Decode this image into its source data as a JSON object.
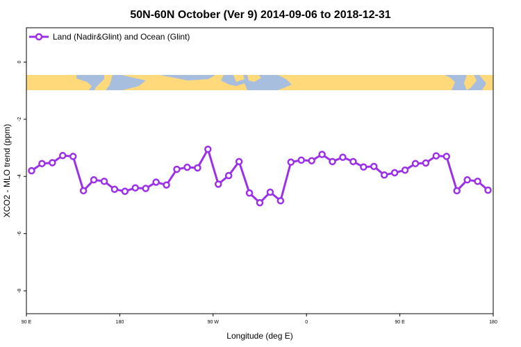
{
  "chart_data": {
    "type": "line",
    "title": "50N-60N October (Ver 9)   2014-09-06 to 2018-12-31",
    "xlabel": "Longitude (deg E)",
    "ylabel": "XCO2 - MLO trend (ppm)",
    "x_ticks": [
      "90 E",
      "180",
      "90 W",
      "0",
      "90 E",
      "180"
    ],
    "y_ticks": [
      "0",
      "-2",
      "-4",
      "-6",
      "-8"
    ],
    "ylim": [
      -8.8,
      1.2
    ],
    "xlim": [
      90,
      540
    ],
    "grid": false,
    "legend_position": "top-left",
    "series": [
      {
        "name": "Land (Nadir&Glint) and Ocean (Glint)",
        "color": "#9b30e8",
        "x": [
          95,
          105,
          115,
          125,
          135,
          145,
          155,
          165,
          175,
          185,
          195,
          205,
          215,
          225,
          235,
          245,
          255,
          265,
          275,
          285,
          295,
          305,
          315,
          325,
          335,
          345,
          355,
          365,
          375,
          385,
          395,
          405,
          415,
          425,
          435,
          445,
          455,
          465,
          475,
          485,
          495,
          505,
          515,
          525,
          535
        ],
        "values": [
          -3.8,
          -3.55,
          -3.52,
          -3.27,
          -3.3,
          -4.5,
          -4.12,
          -4.17,
          -4.45,
          -4.52,
          -4.4,
          -4.42,
          -4.2,
          -4.3,
          -3.75,
          -3.68,
          -3.7,
          -3.05,
          -4.27,
          -3.97,
          -3.48,
          -4.58,
          -4.92,
          -4.55,
          -4.85,
          -3.5,
          -3.43,
          -3.45,
          -3.23,
          -3.48,
          -3.33,
          -3.48,
          -3.67,
          -3.65,
          -3.95,
          -3.87,
          -3.78,
          -3.55,
          -3.53,
          -3.28,
          -3.3,
          -4.5,
          -4.12,
          -4.17,
          -4.48
        ]
      }
    ]
  },
  "map_strip": {
    "ocean_color": "#a8bedf",
    "land_color": "#ffd97a"
  }
}
